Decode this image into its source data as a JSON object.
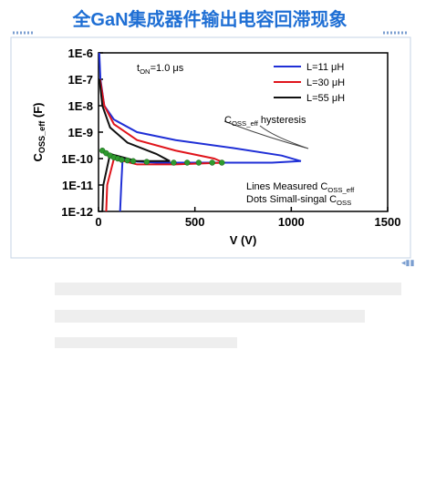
{
  "header": {
    "title": "全GaN集成器件输出电容回滞现象"
  },
  "chart_data": {
    "type": "line",
    "x_label": "V (V)",
    "y_label": {
      "text": "C",
      "sub": "OSS_eff",
      "tail": " (F)"
    },
    "xlim": [
      0,
      1500
    ],
    "xticks": [
      0,
      500,
      1000,
      1500
    ],
    "ylim": [
      1e-12,
      1e-06
    ],
    "log_y": true,
    "yticks": [
      {
        "value": 1e-06,
        "label": "1E-6"
      },
      {
        "value": 1e-07,
        "label": "1E-7"
      },
      {
        "value": 1e-08,
        "label": "1E-8"
      },
      {
        "value": 1e-09,
        "label": "1E-9"
      },
      {
        "value": 1e-10,
        "label": "1E-10"
      },
      {
        "value": 1e-11,
        "label": "1E-11"
      },
      {
        "value": 1e-12,
        "label": "1E-12"
      }
    ],
    "series": [
      {
        "name": "L=11 μH",
        "color": "#1f2fd6",
        "x": [
          4,
          10,
          30,
          80,
          200,
          400,
          700,
          950,
          1050,
          900,
          600,
          300,
          150,
          125,
          118,
          112
        ],
        "values": [
          1e-06,
          1e-07,
          1e-08,
          3e-09,
          1e-09,
          5e-10,
          2.5e-10,
          1.3e-10,
          8e-11,
          7e-11,
          7e-11,
          7e-11,
          8e-11,
          1e-10,
          1e-11,
          1e-12
        ]
      },
      {
        "name": "L=30 μH",
        "color": "#e0141b",
        "x": [
          8,
          30,
          80,
          200,
          400,
          600,
          650,
          400,
          200,
          80,
          45,
          40
        ],
        "values": [
          1e-07,
          1e-08,
          2e-09,
          5e-10,
          2e-10,
          1e-10,
          7e-11,
          6e-11,
          6e-11,
          1e-10,
          1e-11,
          1e-12
        ]
      },
      {
        "name": "L=55 μH",
        "color": "#111111",
        "x": [
          5,
          20,
          60,
          150,
          300,
          370,
          200,
          60,
          25,
          20
        ],
        "values": [
          1e-07,
          1e-08,
          1.5e-09,
          4e-10,
          1.5e-10,
          8e-11,
          8e-11,
          1.5e-10,
          1e-11,
          1e-12
        ]
      }
    ],
    "dots": {
      "color": "#2e9a2e",
      "x": [
        20,
        40,
        60,
        80,
        100,
        120,
        150,
        180,
        250,
        390,
        460,
        520,
        590,
        640
      ],
      "values": [
        2e-10,
        1.6e-10,
        1.3e-10,
        1.1e-10,
        1e-10,
        9e-11,
        8.5e-11,
        8e-11,
        7.5e-11,
        7e-11,
        7e-11,
        7e-11,
        7e-11,
        7e-11
      ]
    },
    "annotations": [
      {
        "text": "t",
        "sub": "ON",
        "tail": "=1.0 μs"
      },
      {
        "text": "C",
        "sub": "OSS_eff",
        "tail": " hysteresis"
      },
      {
        "text": "Lines Measured C",
        "sub": "OSS_eff",
        "tail": ""
      },
      {
        "text": "Dots  Simall-singal C",
        "sub": "OSS",
        "tail": ""
      }
    ]
  }
}
